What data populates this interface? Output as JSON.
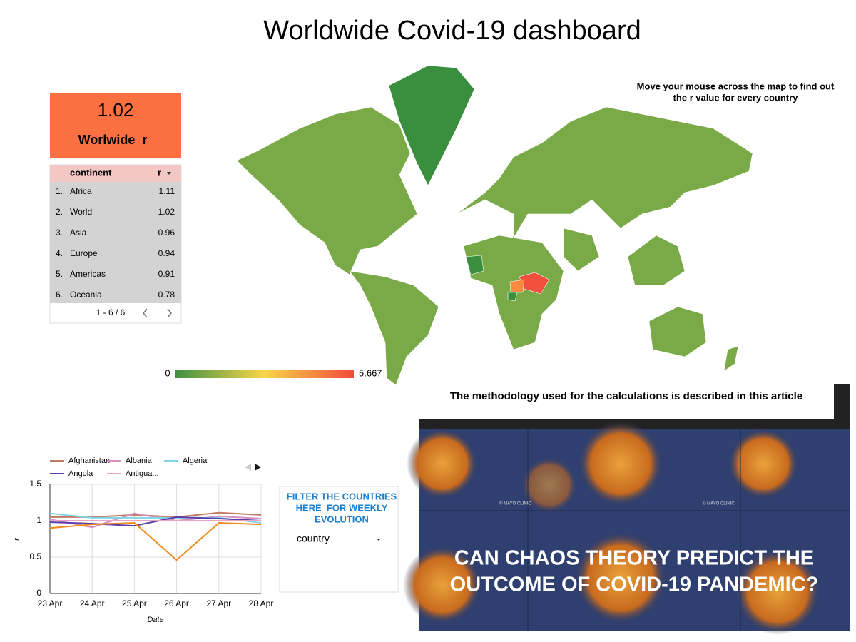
{
  "title": "Worldwide Covid-19 dashboard",
  "scorecard": {
    "value": "1.02",
    "label": "Worlwide  r"
  },
  "table": {
    "headers": [
      "continent",
      "r"
    ],
    "rows": [
      [
        "1.",
        "Africa",
        "1.11"
      ],
      [
        "2.",
        "World",
        "1.02"
      ],
      [
        "3.",
        "Asia",
        "0.96"
      ],
      [
        "4.",
        "Europe",
        "0.94"
      ],
      [
        "5.",
        "Americas",
        "0.91"
      ],
      [
        "6.",
        "Oceania",
        "0.78"
      ]
    ],
    "pagination": "1 - 6 / 6"
  },
  "map": {
    "note": [
      "Move your mouse across the map to find out",
      "the r value for every country"
    ],
    "legend_min": "0",
    "legend_max": "5.667"
  },
  "methodology": "The methodology used for the calculations is described in this article",
  "filter": {
    "title": [
      "FILTER THE COUNTRIES",
      "HERE  FOR WEEKLY",
      "EVOLUTION"
    ],
    "dropdown": "country"
  },
  "article": {
    "headline": [
      "CAN CHAOS THEORY PREDICT THE",
      "OUTCOME OF COVID-19 PANDEMIC?"
    ],
    "watermark": "© MAYO CLINIC"
  },
  "chart_data": {
    "type": "line",
    "categories": [
      "23 Apr",
      "24 Apr",
      "25 Apr",
      "26 Apr",
      "27 Apr",
      "28 Apr"
    ],
    "series": [
      {
        "name": "Afghanistan",
        "color": "#c27a62",
        "values": [
          1.05,
          1.05,
          1.08,
          1.05,
          1.11,
          1.08
        ]
      },
      {
        "name": "Albania",
        "color": "#d68fc0",
        "values": [
          1.02,
          0.91,
          1.1,
          1.0,
          1.06,
          1.03
        ]
      },
      {
        "name": "Algeria",
        "color": "#80d4e8",
        "values": [
          1.1,
          1.04,
          1.04,
          1.04,
          1.04,
          0.97
        ]
      },
      {
        "name": "Angola",
        "color": "#5b3ea6",
        "values": [
          0.98,
          0.96,
          0.93,
          1.05,
          1.03,
          1.0
        ]
      },
      {
        "name": "Antigua...",
        "color": "#eaa3c4",
        "values": [
          1.0,
          1.0,
          1.0,
          1.0,
          1.0,
          1.0
        ]
      },
      {
        "color": "#ef8a1e",
        "values": [
          0.9,
          0.95,
          0.97,
          0.46,
          0.97,
          0.95
        ]
      }
    ],
    "ylim": [
      0,
      1.5
    ],
    "yticks": [
      0,
      0.5,
      1,
      1.5
    ],
    "grid": true,
    "x_label": "Date",
    "y_label": "r"
  }
}
